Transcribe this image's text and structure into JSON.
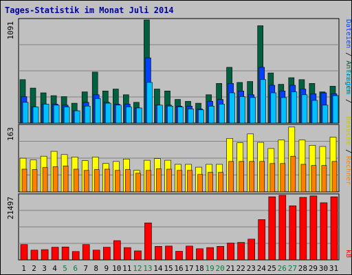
{
  "title": "Tages-Statistik im Monat Juli 2014",
  "colors": {
    "background": "#c0c0c0",
    "panel": "#c0c0c0",
    "title": "#0000a0",
    "anfragen": "#006040",
    "dateien": "#0040ff",
    "seiten": "#00c0ff",
    "besuche": "#ffff00",
    "rechner": "#ff8000",
    "kb": "#ff0000",
    "weekend": "#008040",
    "weekday": "#000000"
  },
  "chart_data": [
    {
      "type": "bar",
      "panel": "top",
      "ymax_label": "1091",
      "ylim": [
        0,
        1091
      ],
      "categories": [
        "1",
        "2",
        "3",
        "4",
        "5",
        "6",
        "7",
        "8",
        "9",
        "10",
        "11",
        "12",
        "13",
        "14",
        "15",
        "16",
        "17",
        "18",
        "19",
        "20",
        "21",
        "22",
        "23",
        "24",
        "25",
        "26",
        "27",
        "28",
        "29",
        "30",
        "31"
      ],
      "series": [
        {
          "name": "Anfragen",
          "color": "#006040",
          "values": [
            460,
            370,
            320,
            290,
            280,
            210,
            330,
            540,
            340,
            360,
            300,
            220,
            1091,
            360,
            340,
            250,
            230,
            210,
            300,
            420,
            590,
            430,
            440,
            1030,
            530,
            410,
            480,
            460,
            420,
            330,
            390
          ]
        },
        {
          "name": "Dateien",
          "color": "#0040ff",
          "values": [
            280,
            170,
            200,
            200,
            190,
            130,
            220,
            300,
            220,
            200,
            200,
            160,
            690,
            190,
            190,
            180,
            180,
            150,
            230,
            250,
            420,
            340,
            300,
            590,
            400,
            340,
            400,
            360,
            310,
            320,
            310
          ]
        },
        {
          "name": "Seiten",
          "color": "#00c0ff",
          "values": [
            220,
            170,
            200,
            190,
            170,
            130,
            180,
            260,
            210,
            190,
            170,
            160,
            430,
            190,
            180,
            170,
            150,
            140,
            180,
            200,
            320,
            280,
            270,
            460,
            320,
            270,
            330,
            300,
            240,
            190,
            290
          ]
        }
      ],
      "legend": [
        "Anfragen",
        "Dateien",
        "Seiten"
      ]
    },
    {
      "type": "bar",
      "panel": "middle",
      "ymax_label": "163",
      "ylim": [
        0,
        163
      ],
      "categories": [
        "1",
        "2",
        "3",
        "4",
        "5",
        "6",
        "7",
        "8",
        "9",
        "10",
        "11",
        "12",
        "13",
        "14",
        "15",
        "16",
        "17",
        "18",
        "19",
        "20",
        "21",
        "22",
        "23",
        "24",
        "25",
        "26",
        "27",
        "28",
        "29",
        "30",
        "31"
      ],
      "series": [
        {
          "name": "Besuche",
          "color": "#ffff00",
          "values": [
            83,
            79,
            88,
            100,
            92,
            86,
            77,
            86,
            70,
            75,
            81,
            53,
            78,
            82,
            78,
            68,
            68,
            61,
            68,
            68,
            132,
            121,
            143,
            122,
            107,
            128,
            160,
            128,
            115,
            112,
            135
          ]
        },
        {
          "name": "Rechner",
          "color": "#ff8000",
          "values": [
            56,
            55,
            60,
            62,
            64,
            56,
            53,
            55,
            56,
            53,
            55,
            46,
            53,
            57,
            56,
            53,
            53,
            43,
            48,
            48,
            75,
            75,
            75,
            75,
            70,
            70,
            88,
            68,
            65,
            65,
            75
          ]
        }
      ],
      "legend": [
        "Besuche",
        "Rechner"
      ]
    },
    {
      "type": "bar",
      "panel": "bottom",
      "ymax_label": "21497",
      "ylim": [
        0,
        21497
      ],
      "categories": [
        "1",
        "2",
        "3",
        "4",
        "5",
        "6",
        "7",
        "8",
        "9",
        "10",
        "11",
        "12",
        "13",
        "14",
        "15",
        "16",
        "17",
        "18",
        "19",
        "20",
        "21",
        "22",
        "23",
        "24",
        "25",
        "26",
        "27",
        "28",
        "29",
        "30",
        "31"
      ],
      "series": [
        {
          "name": "kB",
          "color": "#ff0000",
          "values": [
            5100,
            3250,
            3400,
            4200,
            4300,
            2800,
            5100,
            3250,
            4200,
            6400,
            4100,
            3000,
            12300,
            4500,
            4600,
            2850,
            4600,
            3700,
            4100,
            4500,
            5600,
            5800,
            6900,
            13400,
            21000,
            21497,
            18000,
            20800,
            21300,
            19000,
            21000
          ]
        }
      ],
      "legend": [
        "kB"
      ]
    }
  ],
  "x_ticks": [
    {
      "label": "1",
      "weekend": false
    },
    {
      "label": "2",
      "weekend": false
    },
    {
      "label": "3",
      "weekend": false
    },
    {
      "label": "4",
      "weekend": false
    },
    {
      "label": "5",
      "weekend": true
    },
    {
      "label": "6",
      "weekend": true
    },
    {
      "label": "7",
      "weekend": false
    },
    {
      "label": "8",
      "weekend": false
    },
    {
      "label": "9",
      "weekend": false
    },
    {
      "label": "10",
      "weekend": false
    },
    {
      "label": "11",
      "weekend": false
    },
    {
      "label": "12",
      "weekend": true
    },
    {
      "label": "13",
      "weekend": true
    },
    {
      "label": "14",
      "weekend": false
    },
    {
      "label": "15",
      "weekend": false
    },
    {
      "label": "16",
      "weekend": false
    },
    {
      "label": "17",
      "weekend": false
    },
    {
      "label": "18",
      "weekend": false
    },
    {
      "label": "19",
      "weekend": true
    },
    {
      "label": "20",
      "weekend": true
    },
    {
      "label": "21",
      "weekend": false
    },
    {
      "label": "22",
      "weekend": false
    },
    {
      "label": "23",
      "weekend": false
    },
    {
      "label": "24",
      "weekend": false
    },
    {
      "label": "25",
      "weekend": false
    },
    {
      "label": "26",
      "weekend": true
    },
    {
      "label": "27",
      "weekend": true
    },
    {
      "label": "28",
      "weekend": false
    },
    {
      "label": "29",
      "weekend": false
    },
    {
      "label": "30",
      "weekend": false
    },
    {
      "label": "31",
      "weekend": false
    }
  ],
  "legend_labels": {
    "anfragen": "Anfragen",
    "dateien": "Dateien",
    "seiten": "Seiten",
    "besuche": "Besuche",
    "rechner": "Rechner",
    "kb": "kB",
    "separator": " / "
  }
}
